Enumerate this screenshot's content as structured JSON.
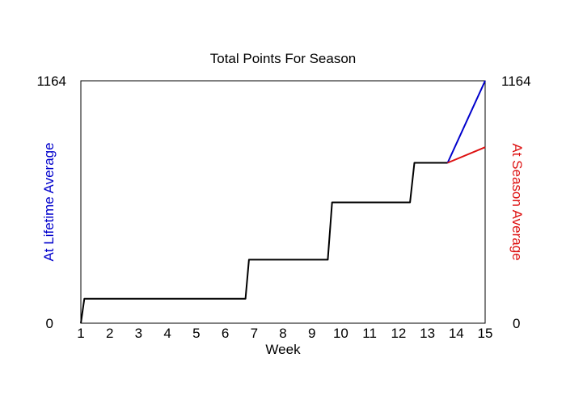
{
  "chart_data": {
    "type": "line",
    "title": "Total Points For Season",
    "xlabel": "Week",
    "ylabel_left": "At Lifetime Average",
    "ylabel_right": "At Season Average",
    "xlim": [
      1,
      15
    ],
    "ylim": [
      0,
      1164
    ],
    "x_ticks": [
      "1",
      "2",
      "3",
      "4",
      "5",
      "6",
      "7",
      "8",
      "9",
      "10",
      "11",
      "12",
      "13",
      "14",
      "15"
    ],
    "y_tick_labels": {
      "min": "0",
      "max": "1164"
    },
    "grid": false,
    "legend": "none",
    "series": [
      {
        "color": "#000000",
        "points": [
          [
            1.0,
            0
          ],
          [
            1.12,
            117
          ],
          [
            6.7,
            117
          ],
          [
            6.82,
            305
          ],
          [
            9.55,
            305
          ],
          [
            9.7,
            580
          ],
          [
            12.4,
            580
          ],
          [
            12.55,
            770
          ],
          [
            13.7,
            770
          ]
        ]
      },
      {
        "color": "#0000cc",
        "axis": "left",
        "points": [
          [
            13.7,
            770
          ],
          [
            15.0,
            1164
          ]
        ]
      },
      {
        "color": "#dd1111",
        "axis": "right",
        "points": [
          [
            13.7,
            770
          ],
          [
            15.0,
            845
          ]
        ]
      }
    ],
    "colors": {
      "axis": "#000000",
      "left_label": "#0000cc",
      "right_label": "#dd1111"
    }
  }
}
